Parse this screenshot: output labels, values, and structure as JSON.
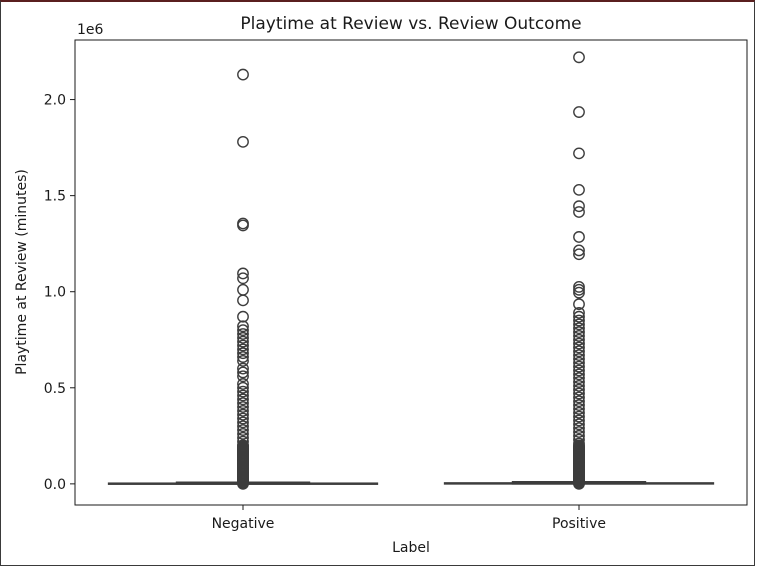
{
  "chart_data": {
    "type": "box",
    "title": "Playtime at Review vs. Review Outcome",
    "xlabel": "Label",
    "ylabel": "Playtime at Review (minutes)",
    "y_offset_label": "1e6",
    "categories": [
      "Negative",
      "Positive"
    ],
    "ylim": [
      -110000,
      2310000
    ],
    "yticks": [
      0,
      500000,
      1000000,
      1500000,
      2000000
    ],
    "ytick_labels": [
      "0.0",
      "0.5",
      "1.0",
      "1.5",
      "2.0"
    ],
    "boxes": [
      {
        "name": "Negative",
        "q1": 300,
        "median": 900,
        "q3": 3500,
        "whisker_low": 0,
        "whisker_high": 8300,
        "outliers": [
          2130000,
          1780000,
          1355000,
          1345000,
          1095000,
          1070000,
          1010000,
          955000,
          870000,
          820000,
          800000,
          780000,
          760000,
          740000,
          720000,
          700000,
          680000,
          660000,
          640000,
          600000,
          580000,
          560000,
          520000,
          500000,
          480000,
          460000,
          440000,
          420000,
          400000,
          380000,
          360000,
          340000,
          320000,
          300000,
          280000,
          260000,
          240000,
          220000,
          200000,
          180000,
          160000,
          140000,
          120000,
          100000,
          80000,
          60000,
          40000,
          25000,
          15000
        ]
      },
      {
        "name": "Positive",
        "q1": 400,
        "median": 1500,
        "q3": 5000,
        "whisker_low": 0,
        "whisker_high": 11000,
        "outliers": [
          2220000,
          1935000,
          1720000,
          1530000,
          1445000,
          1415000,
          1285000,
          1215000,
          1195000,
          1025000,
          1010000,
          995000,
          935000,
          890000,
          870000,
          850000,
          830000,
          810000,
          790000,
          770000,
          750000,
          730000,
          710000,
          690000,
          670000,
          650000,
          630000,
          610000,
          590000,
          570000,
          550000,
          530000,
          510000,
          490000,
          470000,
          450000,
          430000,
          410000,
          390000,
          370000,
          350000,
          330000,
          310000,
          290000,
          270000,
          250000,
          230000,
          210000,
          190000,
          170000,
          150000,
          130000,
          110000,
          90000,
          70000,
          50000,
          35000,
          22000,
          14000
        ]
      }
    ],
    "grid": false,
    "colors": {
      "box_edge": "#3d3d3d",
      "outlier": "#3d3d3d",
      "box_fill": "#ffffff"
    }
  }
}
